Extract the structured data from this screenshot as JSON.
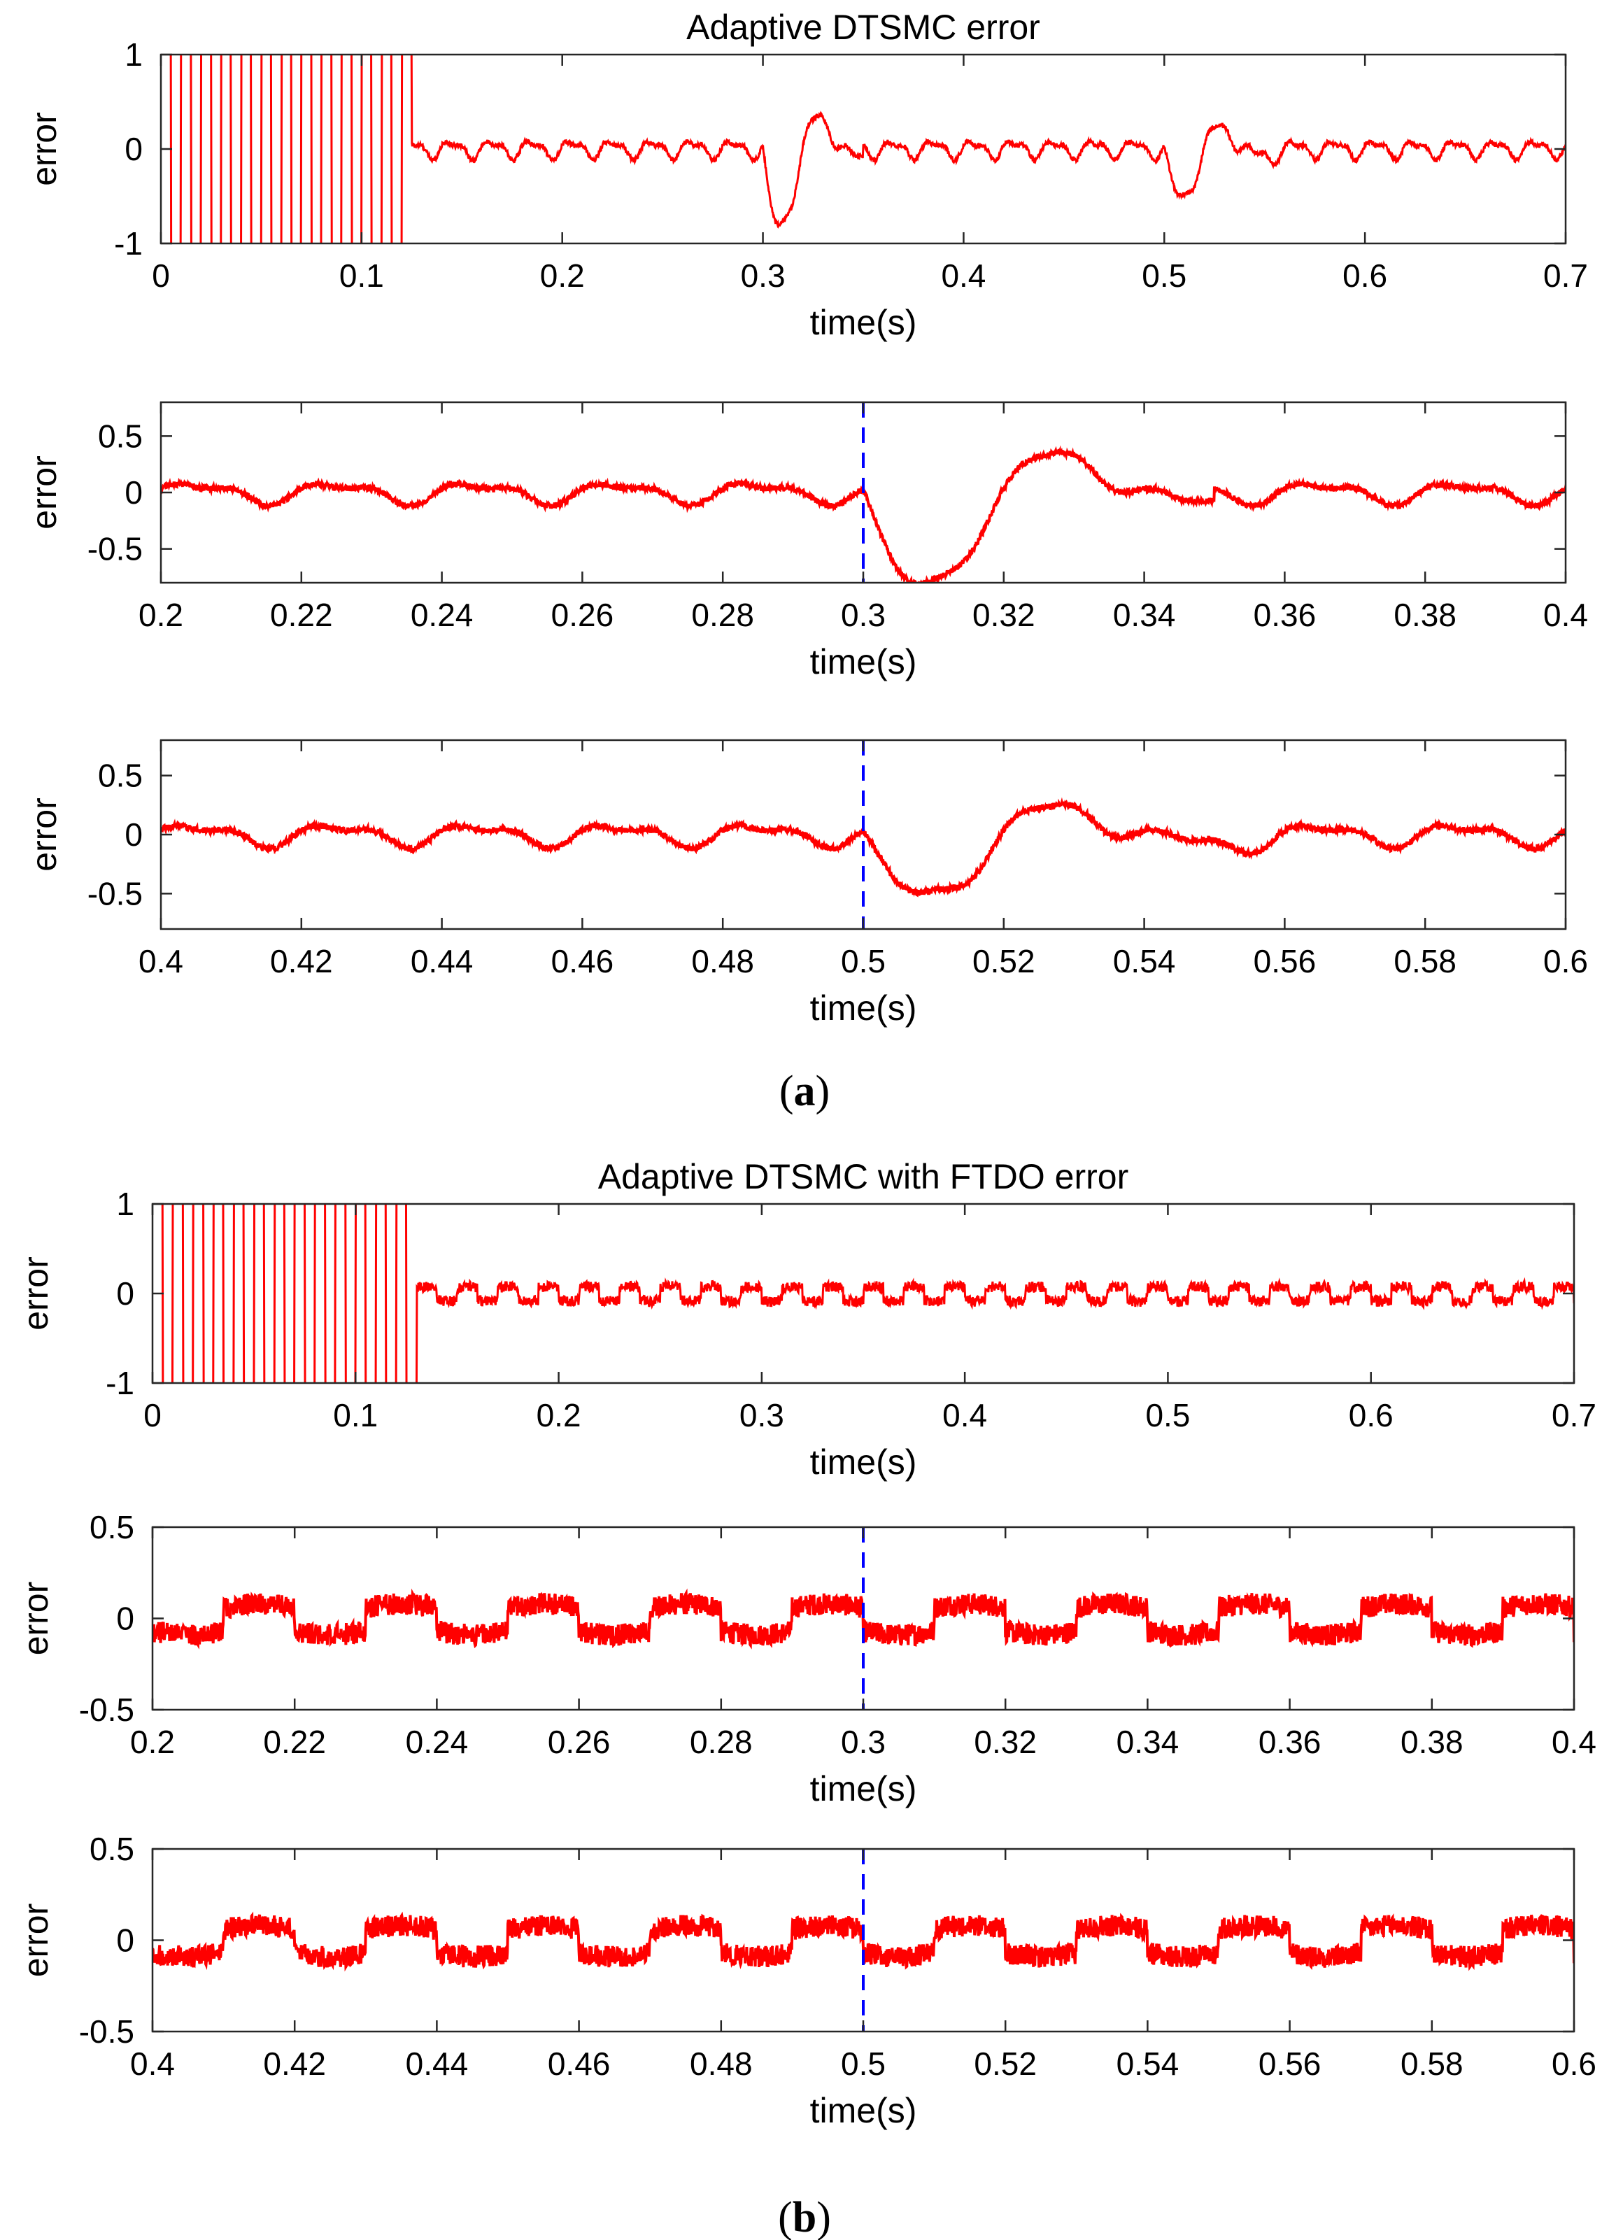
{
  "figure": {
    "caption_a": "a",
    "caption_b": "b"
  },
  "chart_data": [
    {
      "type": "line",
      "title": "Adaptive DTSMC error",
      "xlabel": "time(s)",
      "ylabel": "error",
      "xlim": [
        0,
        0.7
      ],
      "ylim": [
        -1,
        1
      ],
      "xticks": [
        0,
        0.1,
        0.2,
        0.3,
        0.4,
        0.5,
        0.6,
        0.7
      ],
      "xtick_labels": [
        "0",
        "0.1",
        "0.2",
        "0.3",
        "0.4",
        "0.5",
        "0.6",
        "0.7"
      ],
      "yticks": [
        -1,
        0,
        1
      ],
      "ytick_labels": [
        "-1",
        "0",
        "1"
      ],
      "series": [
        {
          "name": "error",
          "color": "#ff0000",
          "model": "adaptive_dtsmc",
          "startup_end": 0.125
        }
      ]
    },
    {
      "type": "line",
      "title": "",
      "xlabel": "time(s)",
      "ylabel": "error",
      "xlim": [
        0.2,
        0.4
      ],
      "ylim": [
        -0.8,
        0.8
      ],
      "xticks": [
        0.2,
        0.22,
        0.24,
        0.26,
        0.28,
        0.3,
        0.32,
        0.34,
        0.36,
        0.38,
        0.4
      ],
      "xtick_labels": [
        "0.2",
        "0.22",
        "0.24",
        "0.26",
        "0.28",
        "0.3",
        "0.32",
        "0.34",
        "0.36",
        "0.38",
        "0.4"
      ],
      "yticks": [
        -0.5,
        0,
        0.5
      ],
      "ytick_labels": [
        "-0.5",
        "0",
        "0.5"
      ],
      "marker_line": {
        "x": 0.3,
        "color": "#0000ff",
        "style": "dashed"
      },
      "series": [
        {
          "name": "error",
          "color": "#ff0000",
          "model": "adaptive_dtsmc"
        }
      ]
    },
    {
      "type": "line",
      "title": "",
      "xlabel": "time(s)",
      "ylabel": "error",
      "xlim": [
        0.4,
        0.6
      ],
      "ylim": [
        -0.8,
        0.8
      ],
      "xticks": [
        0.4,
        0.42,
        0.44,
        0.46,
        0.48,
        0.5,
        0.52,
        0.54,
        0.56,
        0.58,
        0.6
      ],
      "xtick_labels": [
        "0.4",
        "0.42",
        "0.44",
        "0.46",
        "0.48",
        "0.5",
        "0.52",
        "0.54",
        "0.56",
        "0.58",
        "0.6"
      ],
      "yticks": [
        -0.5,
        0,
        0.5
      ],
      "ytick_labels": [
        "-0.5",
        "0",
        "0.5"
      ],
      "marker_line": {
        "x": 0.5,
        "color": "#0000ff",
        "style": "dashed"
      },
      "series": [
        {
          "name": "error",
          "color": "#ff0000",
          "model": "adaptive_dtsmc"
        }
      ]
    },
    {
      "type": "line",
      "title": "Adaptive DTSMC with FTDO error",
      "xlabel": "time(s)",
      "ylabel": "error",
      "xlim": [
        0,
        0.7
      ],
      "ylim": [
        -1,
        1
      ],
      "xticks": [
        0,
        0.1,
        0.2,
        0.3,
        0.4,
        0.5,
        0.6,
        0.7
      ],
      "xtick_labels": [
        "0",
        "0.1",
        "0.2",
        "0.3",
        "0.4",
        "0.5",
        "0.6",
        "0.7"
      ],
      "yticks": [
        -1,
        0,
        1
      ],
      "ytick_labels": [
        "-1",
        "0",
        "1"
      ],
      "series": [
        {
          "name": "error",
          "color": "#ff0000",
          "model": "ftdo",
          "startup_end": 0.13
        }
      ]
    },
    {
      "type": "line",
      "title": "",
      "xlabel": "time(s)",
      "ylabel": "error",
      "xlim": [
        0.2,
        0.4
      ],
      "ylim": [
        -0.5,
        0.5
      ],
      "xticks": [
        0.2,
        0.22,
        0.24,
        0.26,
        0.28,
        0.3,
        0.32,
        0.34,
        0.36,
        0.38,
        0.4
      ],
      "xtick_labels": [
        "0.2",
        "0.22",
        "0.24",
        "0.26",
        "0.28",
        "0.3",
        "0.32",
        "0.34",
        "0.36",
        "0.38",
        "0.4"
      ],
      "yticks": [
        -0.5,
        0,
        0.5
      ],
      "ytick_labels": [
        "-0.5",
        "0",
        "0.5"
      ],
      "marker_line": {
        "x": 0.3,
        "color": "#0000ff",
        "style": "dashed"
      },
      "series": [
        {
          "name": "error",
          "color": "#ff0000",
          "model": "ftdo"
        }
      ]
    },
    {
      "type": "line",
      "title": "",
      "xlabel": "time(s)",
      "ylabel": "error",
      "xlim": [
        0.4,
        0.6
      ],
      "ylim": [
        -0.5,
        0.5
      ],
      "xticks": [
        0.4,
        0.42,
        0.44,
        0.46,
        0.48,
        0.5,
        0.52,
        0.54,
        0.56,
        0.58,
        0.6
      ],
      "xtick_labels": [
        "0.4",
        "0.42",
        "0.44",
        "0.46",
        "0.48",
        "0.5",
        "0.52",
        "0.54",
        "0.56",
        "0.58",
        "0.6"
      ],
      "yticks": [
        -0.5,
        0,
        0.5
      ],
      "ytick_labels": [
        "-0.5",
        "0",
        "0.5"
      ],
      "marker_line": {
        "x": 0.5,
        "color": "#0000ff",
        "style": "dashed"
      },
      "series": [
        {
          "name": "error",
          "color": "#ff0000",
          "model": "ftdo"
        }
      ]
    }
  ]
}
